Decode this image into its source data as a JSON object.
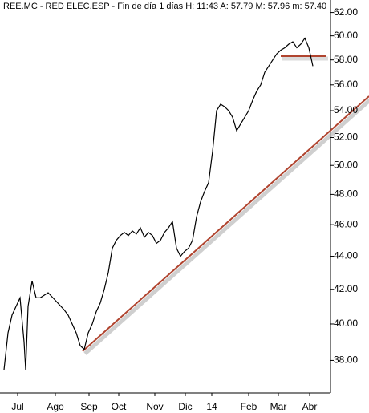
{
  "chart_data": {
    "type": "line",
    "title": "REE.MC - RED ELEC.ESP - Fin de día 1 días  H: 11:43  A: 57.79  M: 57.96  m: 57.40",
    "log_scale": true,
    "grid": false,
    "x": [
      0,
      2.5,
      5,
      7.5,
      10,
      12.5,
      13.5,
      15,
      17.5,
      20,
      22.5,
      27.5,
      32.5,
      37.5,
      40,
      42.5,
      45,
      47.5,
      50,
      52.5,
      55,
      57.5,
      60,
      62.5,
      65,
      67.5,
      70,
      72.5,
      75,
      77.5,
      80,
      82.5,
      85,
      87.5,
      90,
      92.5,
      95,
      97.5,
      100,
      102.5,
      105,
      107.5,
      110,
      112.5,
      115,
      117.5,
      120,
      122.5,
      125,
      127.5,
      130,
      132.5,
      135,
      137.5,
      140,
      142.5,
      145,
      147.5,
      150,
      152.5,
      155,
      157.5,
      160,
      162.5,
      165,
      167.5,
      170,
      172.5,
      175,
      177.5,
      180,
      182.5,
      185,
      187.5,
      190,
      192.5
    ],
    "series": [
      {
        "name": "REE.MC",
        "color": "#000000",
        "values": [
          37.5,
          39.5,
          40.5,
          41,
          41.5,
          39,
          37.5,
          41,
          42.5,
          41.5,
          41.5,
          41.8,
          41.3,
          40.8,
          40.5,
          40,
          39.5,
          38.8,
          38.6,
          39.5,
          40,
          40.7,
          41.2,
          42,
          43,
          44.5,
          45,
          45.3,
          45.5,
          45.3,
          45.6,
          45.4,
          45.8,
          45.2,
          45.5,
          45.3,
          44.8,
          45,
          45.5,
          45.8,
          46.2,
          44.5,
          44,
          44.3,
          44.5,
          45,
          46.5,
          47.5,
          48.2,
          48.8,
          51,
          54,
          54.5,
          54.3,
          54,
          53.5,
          52.5,
          53,
          53.5,
          54,
          54.8,
          55.5,
          56,
          57,
          57.5,
          58,
          58.5,
          58.8,
          59,
          59.3,
          59.5,
          59,
          59.3,
          59.8,
          59,
          57.5
        ]
      }
    ],
    "xlim": [
      -2.5,
      203.5
    ],
    "xticks": [
      {
        "value": 8.5,
        "label": "Jul"
      },
      {
        "value": 32,
        "label": "Ago"
      },
      {
        "value": 53,
        "label": "Sep"
      },
      {
        "value": 71.5,
        "label": "Oct"
      },
      {
        "value": 94,
        "label": "Nov"
      },
      {
        "value": 113,
        "label": "Dic"
      },
      {
        "value": 129.5,
        "label": "14"
      },
      {
        "value": 152.5,
        "label": "Feb"
      },
      {
        "value": 171,
        "label": "Mar"
      },
      {
        "value": 190.5,
        "label": "Abr"
      }
    ],
    "ylim": [
      36.3,
      63.1
    ],
    "yticks": [
      {
        "value": 38,
        "label": "38.00"
      },
      {
        "value": 40,
        "label": "40.00"
      },
      {
        "value": 42,
        "label": "42.00"
      },
      {
        "value": 44,
        "label": "44.00"
      },
      {
        "value": 46,
        "label": "46.00"
      },
      {
        "value": 48,
        "label": "48.00"
      },
      {
        "value": 50,
        "label": "50.00"
      },
      {
        "value": 52,
        "label": "52.00"
      },
      {
        "value": 54,
        "label": "54.00"
      },
      {
        "value": 56,
        "label": "56.00"
      },
      {
        "value": 58,
        "label": "58.00"
      },
      {
        "value": 60,
        "label": "60.00"
      },
      {
        "value": 62,
        "label": "62.00"
      }
    ]
  }
}
